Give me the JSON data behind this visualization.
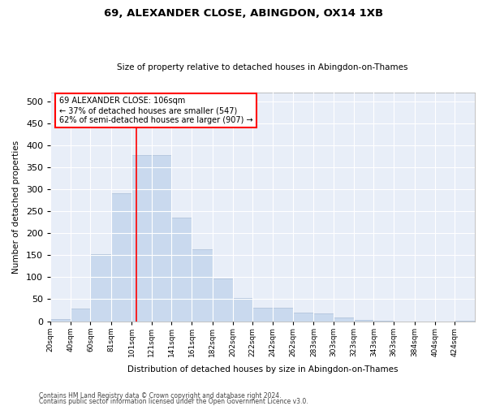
{
  "title": "69, ALEXANDER CLOSE, ABINGDON, OX14 1XB",
  "subtitle": "Size of property relative to detached houses in Abingdon-on-Thames",
  "xlabel": "Distribution of detached houses by size in Abingdon-on-Thames",
  "ylabel": "Number of detached properties",
  "bar_color": "#c9d9ee",
  "bar_edge_color": "#aabdd8",
  "bg_color": "#e8eef8",
  "grid_color": "#ffffff",
  "annotation_line_color": "red",
  "annotation_text_line1": "69 ALEXANDER CLOSE: 106sqm",
  "annotation_text_line2": "← 37% of detached houses are smaller (547)",
  "annotation_text_line3": "62% of semi-detached houses are larger (907) →",
  "property_size": 106,
  "bin_edges": [
    20,
    40,
    60,
    81,
    101,
    121,
    141,
    161,
    182,
    202,
    222,
    242,
    262,
    283,
    303,
    323,
    343,
    363,
    384,
    404,
    424,
    444
  ],
  "bin_labels": [
    "20sqm",
    "40sqm",
    "60sqm",
    "81sqm",
    "101sqm",
    "121sqm",
    "141sqm",
    "161sqm",
    "182sqm",
    "202sqm",
    "222sqm",
    "242sqm",
    "262sqm",
    "283sqm",
    "303sqm",
    "323sqm",
    "343sqm",
    "363sqm",
    "384sqm",
    "404sqm",
    "424sqm"
  ],
  "counts": [
    5,
    28,
    152,
    290,
    378,
    378,
    235,
    163,
    97,
    52,
    30,
    30,
    20,
    17,
    8,
    3,
    1,
    0,
    0,
    0,
    1
  ],
  "ylim": [
    0,
    520
  ],
  "yticks": [
    0,
    50,
    100,
    150,
    200,
    250,
    300,
    350,
    400,
    450,
    500
  ],
  "footer1": "Contains HM Land Registry data © Crown copyright and database right 2024.",
  "footer2": "Contains public sector information licensed under the Open Government Licence v3.0.",
  "fig_width": 6.0,
  "fig_height": 5.0,
  "fig_dpi": 100
}
